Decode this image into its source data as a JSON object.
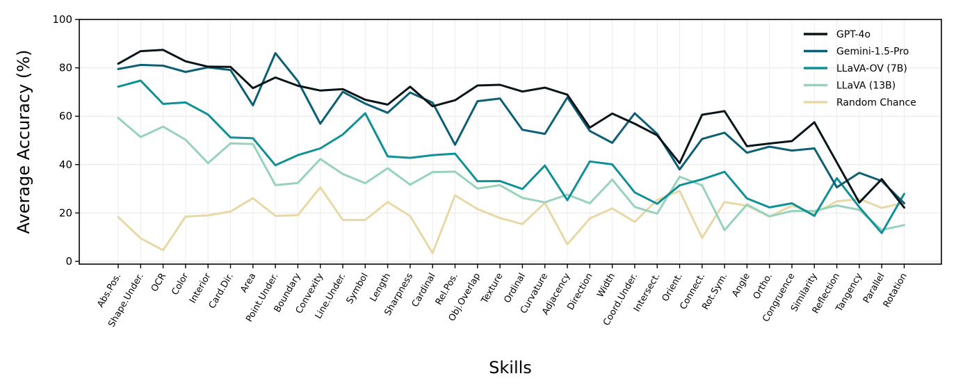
{
  "chart_data": {
    "type": "line",
    "title": "",
    "xlabel": "Skills",
    "ylabel": "Average Accuracy (%)",
    "ylim": [
      0,
      100
    ],
    "yticks": [
      0,
      20,
      40,
      60,
      80,
      100
    ],
    "grid": true,
    "legend_position": "top-right",
    "categories": [
      "Abs.Pos.",
      "Shape.Under.",
      "OCR",
      "Color",
      "Interior",
      "Card.Dir.",
      "Area",
      "Point.Under.",
      "Boundary",
      "Convexity",
      "Line.Under.",
      "Symbol",
      "Length",
      "Sharpness",
      "Cardinal",
      "Rel.Pos.",
      "Obj.Overlap",
      "Texture",
      "Ordinal",
      "Curvature",
      "Adjacency",
      "Direction",
      "Width",
      "Coord.Under.",
      "Intersect.",
      "Orient.",
      "Connect.",
      "Rot.Sym.",
      "Angle",
      "Ortho.",
      "Congruence",
      "Similarity",
      "Reflection",
      "Tangency",
      "Parallel",
      "Rotation"
    ],
    "series": [
      {
        "name": "GPT-4o",
        "color": "#081418",
        "values": [
          81.7,
          86.9,
          87.4,
          82.7,
          80.5,
          80.4,
          71.6,
          76.0,
          72.6,
          70.6,
          71.2,
          66.8,
          64.8,
          72.2,
          64.1,
          66.6,
          72.7,
          73.0,
          70.2,
          71.8,
          68.9,
          55.3,
          61.1,
          56.9,
          52.1,
          40.6,
          60.6,
          62.1,
          47.6,
          48.7,
          49.7,
          57.5,
          40.9,
          24.3,
          34.0,
          22.2
        ]
      },
      {
        "name": "Gemini-1.5-Pro",
        "color": "#0b5e73",
        "values": [
          79.5,
          81.2,
          80.9,
          78.3,
          80.2,
          79.1,
          64.5,
          86.1,
          74.5,
          56.9,
          70.1,
          65.2,
          61.4,
          69.8,
          65.6,
          48.2,
          66.2,
          67.3,
          54.4,
          52.7,
          67.8,
          53.9,
          49.0,
          61.2,
          52.7,
          38.0,
          50.6,
          53.2,
          44.9,
          47.4,
          45.8,
          46.7,
          30.6,
          36.6,
          33.2,
          24.0
        ]
      },
      {
        "name": "LLaVA-OV (7B)",
        "color": "#0f9096",
        "values": [
          72.2,
          74.7,
          65.1,
          65.7,
          60.7,
          51.2,
          50.9,
          39.7,
          43.9,
          46.7,
          52.4,
          61.2,
          43.4,
          42.8,
          43.9,
          44.5,
          33.1,
          33.2,
          29.9,
          39.6,
          25.3,
          41.3,
          40.1,
          28.5,
          23.8,
          31.4,
          33.9,
          37.0,
          26.0,
          22.3,
          24.0,
          18.8,
          34.4,
          22.4,
          11.7,
          27.9
        ]
      },
      {
        "name": "LLaVA (13B)",
        "color": "#97d2bc",
        "values": [
          59.3,
          51.4,
          55.7,
          50.3,
          40.6,
          48.8,
          48.5,
          31.5,
          32.4,
          42.3,
          36.1,
          32.3,
          38.5,
          31.7,
          36.9,
          37.1,
          30.1,
          31.5,
          26.2,
          24.4,
          27.6,
          24.0,
          33.8,
          22.5,
          19.7,
          35.0,
          31.4,
          12.9,
          23.5,
          18.6,
          20.8,
          20.8,
          23.1,
          21.3,
          13.0,
          15.0
        ]
      },
      {
        "name": "Random Chance",
        "color": "#e8d8a6",
        "values": [
          18.3,
          9.5,
          4.6,
          18.5,
          19.0,
          20.6,
          26.1,
          18.8,
          19.1,
          30.6,
          17.1,
          17.1,
          24.5,
          18.7,
          3.4,
          27.3,
          21.6,
          17.9,
          15.4,
          24.2,
          7.0,
          17.7,
          21.9,
          16.3,
          25.4,
          29.1,
          9.7,
          24.5,
          23.0,
          18.5,
          23.0,
          19.9,
          24.8,
          25.8,
          22.1,
          24.2
        ]
      }
    ]
  }
}
